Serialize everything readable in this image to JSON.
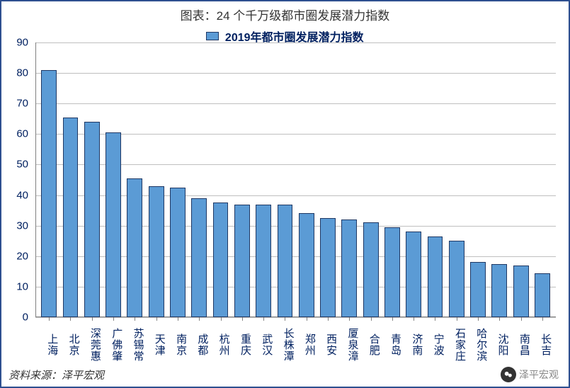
{
  "chart": {
    "title": "图表：24 个千万级都市圈发展潜力指数",
    "legend_label": "2019年都市圈发展潜力指数",
    "type": "bar",
    "bar_fill": "#5b9bd5",
    "bar_border": "#1f3864",
    "legend_box_color": "#5b9bd5",
    "background_color": "#ffffff",
    "grid_color": "#bfbfbf",
    "axis_color": "#808080",
    "text_color": "#002060",
    "title_color": "#333333",
    "title_fontsize": 17,
    "legend_fontsize": 16,
    "axis_fontsize": 15,
    "ylim": [
      0,
      90
    ],
    "ytick_step": 10,
    "yticks": [
      0,
      10,
      20,
      30,
      40,
      50,
      60,
      70,
      80,
      90
    ],
    "bar_width": 0.72,
    "categories": [
      "上海",
      "北京",
      "深莞惠",
      "广佛肇",
      "苏锡常",
      "天津",
      "南京",
      "成都",
      "杭州",
      "重庆",
      "武汉",
      "长株潭",
      "郑州",
      "西安",
      "厦泉漳",
      "合肥",
      "青岛",
      "济南",
      "宁波",
      "石家庄",
      "哈尔滨",
      "沈阳",
      "南昌",
      "长吉"
    ],
    "values": [
      81,
      65.5,
      64,
      60.5,
      45.5,
      43,
      42.5,
      39,
      37.5,
      37,
      37,
      37,
      34,
      32.5,
      32,
      31,
      29.5,
      28,
      26.5,
      25,
      18,
      17.5,
      17,
      14.5
    ]
  },
  "source": "资料来源：泽平宏观",
  "watermark": "泽平宏观"
}
